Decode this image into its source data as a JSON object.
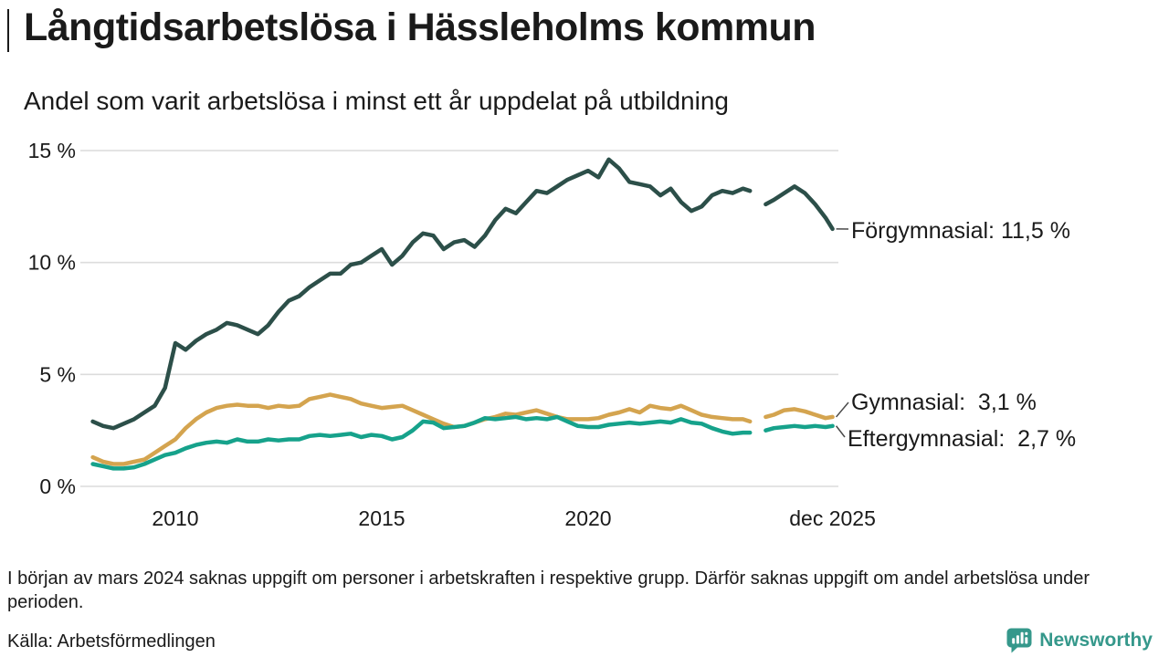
{
  "header": {
    "title": "Långtidsarbetslösa i Hässleholms kommun",
    "subtitle": "Andel som varit arbetslösa i minst ett år uppdelat på utbildning"
  },
  "chart_data": {
    "type": "line",
    "title": "Långtidsarbetslösa i Hässleholms kommun",
    "subtitle": "Andel som varit arbetslösa i minst ett år uppdelat på utbildning",
    "grid": "horizontal",
    "legend_position": "right-edge-labels",
    "y_range": [
      0,
      15
    ],
    "y_ticks": [
      "0 %",
      "5 %",
      "10 %",
      "15 %"
    ],
    "y_tick_values": [
      0,
      5,
      10,
      15
    ],
    "x_range": [
      2008,
      2025.92
    ],
    "x_ticks": [
      {
        "label": "2010",
        "year": 2010
      },
      {
        "label": "2015",
        "year": 2015
      },
      {
        "label": "2020",
        "year": 2020
      },
      {
        "label": "dec 2025",
        "year": 2025.92
      }
    ],
    "series": [
      {
        "name": "Förgymnasial",
        "color": "#2c4f49",
        "final_value": "11,5 %",
        "label": "Förgymnasial: 11,5 %",
        "points": [
          [
            2008.0,
            2.9
          ],
          [
            2008.25,
            2.7
          ],
          [
            2008.5,
            2.6
          ],
          [
            2008.75,
            2.8
          ],
          [
            2009.0,
            3.0
          ],
          [
            2009.25,
            3.3
          ],
          [
            2009.5,
            3.6
          ],
          [
            2009.75,
            4.4
          ],
          [
            2010.0,
            6.4
          ],
          [
            2010.25,
            6.1
          ],
          [
            2010.5,
            6.5
          ],
          [
            2010.75,
            6.8
          ],
          [
            2011.0,
            7.0
          ],
          [
            2011.25,
            7.3
          ],
          [
            2011.5,
            7.2
          ],
          [
            2011.75,
            7.0
          ],
          [
            2012.0,
            6.8
          ],
          [
            2012.25,
            7.2
          ],
          [
            2012.5,
            7.8
          ],
          [
            2012.75,
            8.3
          ],
          [
            2013.0,
            8.5
          ],
          [
            2013.25,
            8.9
          ],
          [
            2013.5,
            9.2
          ],
          [
            2013.75,
            9.5
          ],
          [
            2014.0,
            9.5
          ],
          [
            2014.25,
            9.9
          ],
          [
            2014.5,
            10.0
          ],
          [
            2014.75,
            10.3
          ],
          [
            2015.0,
            10.6
          ],
          [
            2015.25,
            9.9
          ],
          [
            2015.5,
            10.3
          ],
          [
            2015.75,
            10.9
          ],
          [
            2016.0,
            11.3
          ],
          [
            2016.25,
            11.2
          ],
          [
            2016.5,
            10.6
          ],
          [
            2016.75,
            10.9
          ],
          [
            2017.0,
            11.0
          ],
          [
            2017.25,
            10.7
          ],
          [
            2017.5,
            11.2
          ],
          [
            2017.75,
            11.9
          ],
          [
            2018.0,
            12.4
          ],
          [
            2018.25,
            12.2
          ],
          [
            2018.5,
            12.7
          ],
          [
            2018.75,
            13.2
          ],
          [
            2019.0,
            13.1
          ],
          [
            2019.25,
            13.4
          ],
          [
            2019.5,
            13.7
          ],
          [
            2019.75,
            13.9
          ],
          [
            2020.0,
            14.1
          ],
          [
            2020.25,
            13.8
          ],
          [
            2020.5,
            14.6
          ],
          [
            2020.75,
            14.2
          ],
          [
            2021.0,
            13.6
          ],
          [
            2021.25,
            13.5
          ],
          [
            2021.5,
            13.4
          ],
          [
            2021.75,
            13.0
          ],
          [
            2022.0,
            13.3
          ],
          [
            2022.25,
            12.7
          ],
          [
            2022.5,
            12.3
          ],
          [
            2022.75,
            12.5
          ],
          [
            2023.0,
            13.0
          ],
          [
            2023.25,
            13.2
          ],
          [
            2023.5,
            13.1
          ],
          [
            2023.75,
            13.3
          ],
          [
            2023.92,
            13.2
          ],
          [
            2024.08,
            null
          ],
          [
            2024.3,
            12.6
          ],
          [
            2024.5,
            12.8
          ],
          [
            2024.75,
            13.1
          ],
          [
            2025.0,
            13.4
          ],
          [
            2025.25,
            13.1
          ],
          [
            2025.5,
            12.6
          ],
          [
            2025.75,
            12.0
          ],
          [
            2025.92,
            11.5
          ]
        ]
      },
      {
        "name": "Gymnasial",
        "color": "#d4a44f",
        "final_value": "3,1 %",
        "label": "Gymnasial:  3,1 %",
        "points": [
          [
            2008.0,
            1.3
          ],
          [
            2008.25,
            1.1
          ],
          [
            2008.5,
            1.0
          ],
          [
            2008.75,
            1.0
          ],
          [
            2009.0,
            1.1
          ],
          [
            2009.25,
            1.2
          ],
          [
            2009.5,
            1.5
          ],
          [
            2009.75,
            1.8
          ],
          [
            2010.0,
            2.1
          ],
          [
            2010.25,
            2.6
          ],
          [
            2010.5,
            3.0
          ],
          [
            2010.75,
            3.3
          ],
          [
            2011.0,
            3.5
          ],
          [
            2011.25,
            3.6
          ],
          [
            2011.5,
            3.65
          ],
          [
            2011.75,
            3.6
          ],
          [
            2012.0,
            3.6
          ],
          [
            2012.25,
            3.5
          ],
          [
            2012.5,
            3.6
          ],
          [
            2012.75,
            3.55
          ],
          [
            2013.0,
            3.6
          ],
          [
            2013.25,
            3.9
          ],
          [
            2013.5,
            4.0
          ],
          [
            2013.75,
            4.1
          ],
          [
            2014.0,
            4.0
          ],
          [
            2014.25,
            3.9
          ],
          [
            2014.5,
            3.7
          ],
          [
            2014.75,
            3.6
          ],
          [
            2015.0,
            3.5
          ],
          [
            2015.25,
            3.55
          ],
          [
            2015.5,
            3.6
          ],
          [
            2015.75,
            3.4
          ],
          [
            2016.0,
            3.2
          ],
          [
            2016.25,
            3.0
          ],
          [
            2016.5,
            2.8
          ],
          [
            2016.75,
            2.65
          ],
          [
            2017.0,
            2.7
          ],
          [
            2017.25,
            2.85
          ],
          [
            2017.5,
            3.0
          ],
          [
            2017.75,
            3.1
          ],
          [
            2018.0,
            3.25
          ],
          [
            2018.25,
            3.2
          ],
          [
            2018.5,
            3.3
          ],
          [
            2018.75,
            3.4
          ],
          [
            2019.0,
            3.25
          ],
          [
            2019.25,
            3.1
          ],
          [
            2019.5,
            3.0
          ],
          [
            2019.75,
            3.0
          ],
          [
            2020.0,
            3.0
          ],
          [
            2020.25,
            3.05
          ],
          [
            2020.5,
            3.2
          ],
          [
            2020.75,
            3.3
          ],
          [
            2021.0,
            3.45
          ],
          [
            2021.25,
            3.3
          ],
          [
            2021.5,
            3.6
          ],
          [
            2021.75,
            3.5
          ],
          [
            2022.0,
            3.45
          ],
          [
            2022.25,
            3.6
          ],
          [
            2022.5,
            3.4
          ],
          [
            2022.75,
            3.2
          ],
          [
            2023.0,
            3.1
          ],
          [
            2023.25,
            3.05
          ],
          [
            2023.5,
            3.0
          ],
          [
            2023.75,
            3.0
          ],
          [
            2023.92,
            2.9
          ],
          [
            2024.08,
            null
          ],
          [
            2024.3,
            3.1
          ],
          [
            2024.5,
            3.2
          ],
          [
            2024.75,
            3.4
          ],
          [
            2025.0,
            3.45
          ],
          [
            2025.25,
            3.35
          ],
          [
            2025.5,
            3.2
          ],
          [
            2025.75,
            3.05
          ],
          [
            2025.92,
            3.1
          ]
        ]
      },
      {
        "name": "Eftergymnasial",
        "color": "#16a28b",
        "final_value": "2,7 %",
        "label": "Eftergymnasial:  2,7 %",
        "points": [
          [
            2008.0,
            1.0
          ],
          [
            2008.25,
            0.9
          ],
          [
            2008.5,
            0.8
          ],
          [
            2008.75,
            0.8
          ],
          [
            2009.0,
            0.85
          ],
          [
            2009.25,
            1.0
          ],
          [
            2009.5,
            1.2
          ],
          [
            2009.75,
            1.4
          ],
          [
            2010.0,
            1.5
          ],
          [
            2010.25,
            1.7
          ],
          [
            2010.5,
            1.85
          ],
          [
            2010.75,
            1.95
          ],
          [
            2011.0,
            2.0
          ],
          [
            2011.25,
            1.95
          ],
          [
            2011.5,
            2.1
          ],
          [
            2011.75,
            2.0
          ],
          [
            2012.0,
            2.0
          ],
          [
            2012.25,
            2.1
          ],
          [
            2012.5,
            2.05
          ],
          [
            2012.75,
            2.1
          ],
          [
            2013.0,
            2.1
          ],
          [
            2013.25,
            2.25
          ],
          [
            2013.5,
            2.3
          ],
          [
            2013.75,
            2.25
          ],
          [
            2014.0,
            2.3
          ],
          [
            2014.25,
            2.35
          ],
          [
            2014.5,
            2.2
          ],
          [
            2014.75,
            2.3
          ],
          [
            2015.0,
            2.25
          ],
          [
            2015.25,
            2.1
          ],
          [
            2015.5,
            2.2
          ],
          [
            2015.75,
            2.5
          ],
          [
            2016.0,
            2.9
          ],
          [
            2016.25,
            2.85
          ],
          [
            2016.5,
            2.6
          ],
          [
            2016.75,
            2.65
          ],
          [
            2017.0,
            2.7
          ],
          [
            2017.25,
            2.85
          ],
          [
            2017.5,
            3.05
          ],
          [
            2017.75,
            3.0
          ],
          [
            2018.0,
            3.05
          ],
          [
            2018.25,
            3.1
          ],
          [
            2018.5,
            3.0
          ],
          [
            2018.75,
            3.05
          ],
          [
            2019.0,
            3.0
          ],
          [
            2019.25,
            3.1
          ],
          [
            2019.5,
            2.9
          ],
          [
            2019.75,
            2.7
          ],
          [
            2020.0,
            2.65
          ],
          [
            2020.25,
            2.65
          ],
          [
            2020.5,
            2.75
          ],
          [
            2020.75,
            2.8
          ],
          [
            2021.0,
            2.85
          ],
          [
            2021.25,
            2.8
          ],
          [
            2021.5,
            2.85
          ],
          [
            2021.75,
            2.9
          ],
          [
            2022.0,
            2.85
          ],
          [
            2022.25,
            3.0
          ],
          [
            2022.5,
            2.85
          ],
          [
            2022.75,
            2.8
          ],
          [
            2023.0,
            2.6
          ],
          [
            2023.25,
            2.45
          ],
          [
            2023.5,
            2.35
          ],
          [
            2023.75,
            2.4
          ],
          [
            2023.92,
            2.4
          ],
          [
            2024.08,
            null
          ],
          [
            2024.3,
            2.5
          ],
          [
            2024.5,
            2.6
          ],
          [
            2024.75,
            2.65
          ],
          [
            2025.0,
            2.7
          ],
          [
            2025.25,
            2.65
          ],
          [
            2025.5,
            2.7
          ],
          [
            2025.75,
            2.65
          ],
          [
            2025.92,
            2.7
          ]
        ]
      }
    ]
  },
  "footnote": "I början av mars 2024 saknas uppgift om personer i arbetskraften i respektive grupp. Därför saknas uppgift om andel arbetslösa under perioden.",
  "source": "Källa: Arbetsförmedlingen",
  "logo": {
    "text": "Newsworthy",
    "color": "#35988b"
  }
}
